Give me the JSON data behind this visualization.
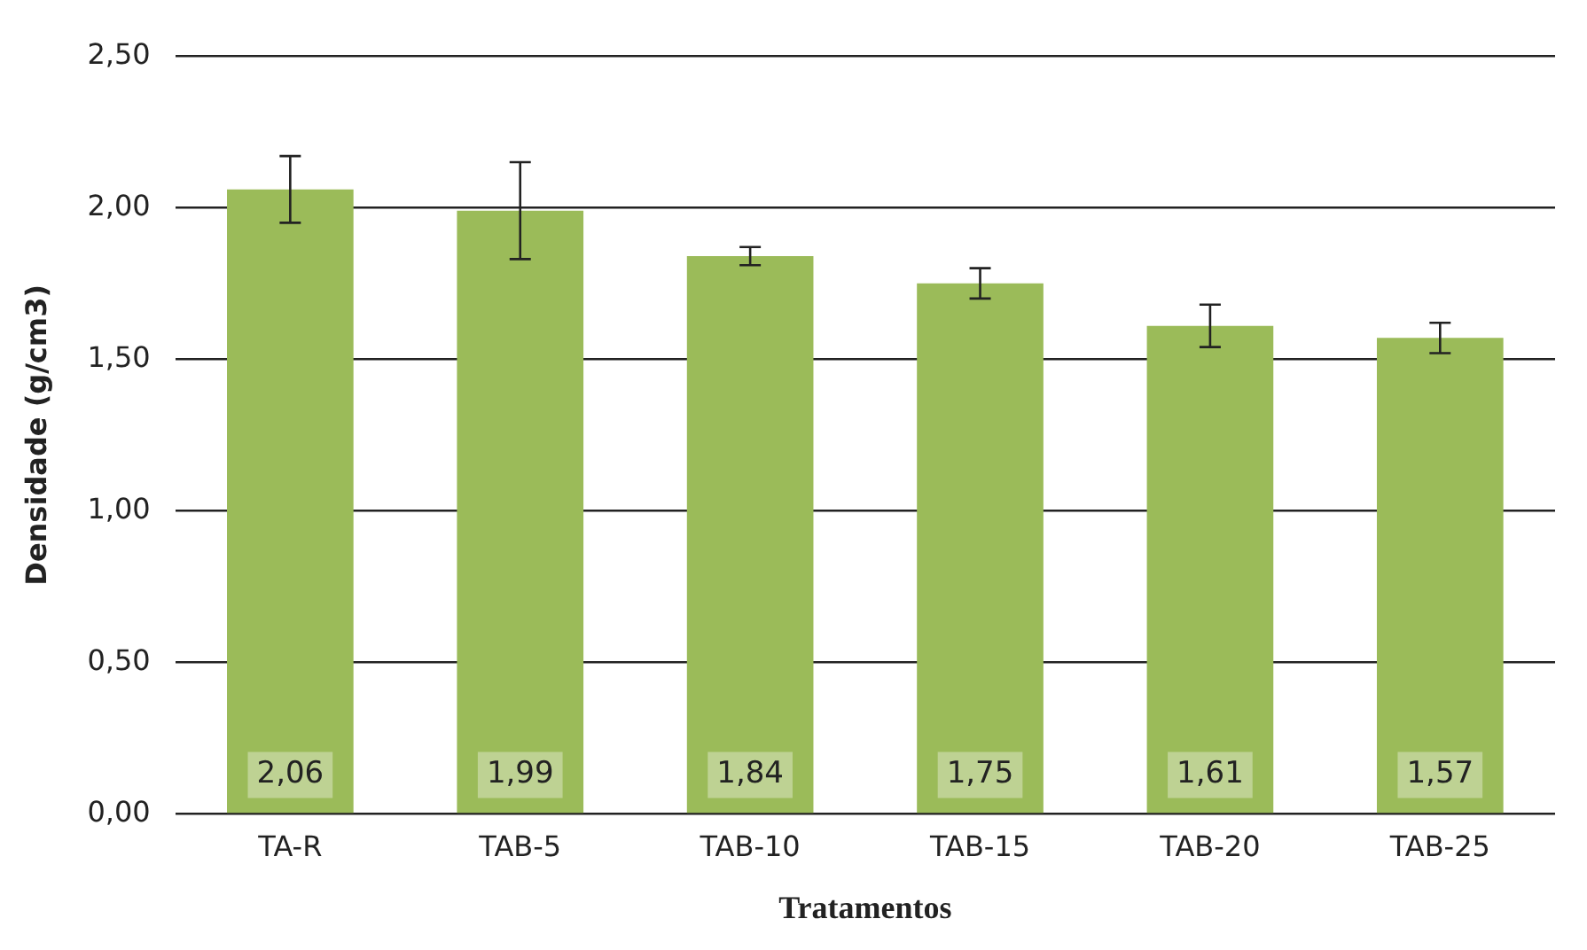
{
  "chart_data": {
    "type": "bar",
    "xlabel": "Tratamentos",
    "ylabel": "Densidade (g/cm3)",
    "categories": [
      "TA-R",
      "TAB-5",
      "TAB-10",
      "TAB-15",
      "TAB-20",
      "TAB-25"
    ],
    "values": [
      2.06,
      1.99,
      1.84,
      1.75,
      1.61,
      1.57
    ],
    "errors": [
      0.11,
      0.16,
      0.03,
      0.05,
      0.07,
      0.05
    ],
    "value_labels": [
      "2,06",
      "1,99",
      "1,84",
      "1,75",
      "1,61",
      "1,57"
    ],
    "color": "#9bbb59",
    "ylim": [
      0,
      2.5
    ],
    "yticks": [
      {
        "value": 0,
        "label": "0,00"
      },
      {
        "value": 0.5,
        "label": "0,50"
      },
      {
        "value": 1,
        "label": "1,00"
      },
      {
        "value": 1.5,
        "label": "1,50"
      },
      {
        "value": 2,
        "label": "2,00"
      },
      {
        "value": 2.5,
        "label": "2,50"
      }
    ],
    "grid": "y",
    "legend": false
  }
}
